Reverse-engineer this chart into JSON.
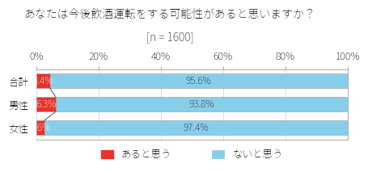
{
  "title_line1": "あなたは今後飲酒運転をする可能性があると思いますか？",
  "title_line2": "[n = 1600]",
  "categories": [
    "合計",
    "男性",
    "女性"
  ],
  "values_yes": [
    4.4,
    6.3,
    2.6
  ],
  "values_no": [
    95.6,
    93.8,
    97.4
  ],
  "color_yes": "#e8332a",
  "color_no": "#87ceeb",
  "bar_edge_color": "#999999",
  "legend_yes": "あると思う",
  "legend_no": "ないと思う",
  "xlim": [
    0,
    100
  ],
  "xticks": [
    0,
    20,
    40,
    60,
    80,
    100
  ],
  "xtick_labels": [
    "0%",
    "20%",
    "40%",
    "60%",
    "80%",
    "100%"
  ],
  "bar_height": 0.62,
  "background_color": "#ffffff",
  "title_fontsize": 10,
  "label_fontsize": 8.5,
  "tick_fontsize": 9,
  "legend_fontsize": 9,
  "annotation_line_color": "#666666",
  "yes_label_color": "#ffffff",
  "no_label_color": "#222222"
}
